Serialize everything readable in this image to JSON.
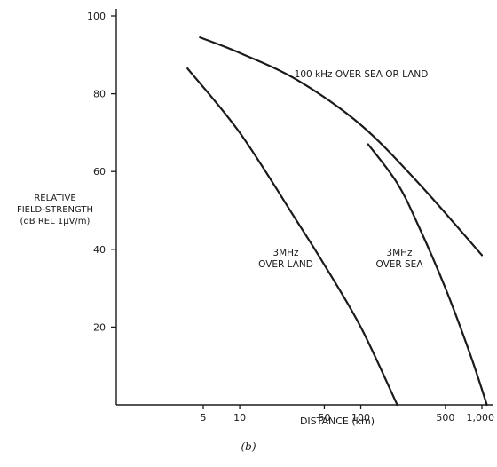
{
  "chart_data": {
    "type": "line",
    "title": "",
    "caption": "(b)",
    "xlabel": "DISTANCE (km)",
    "ylabel_lines": [
      "RELATIVE",
      "FIELD-STRENGTH",
      "(dB REL 1μV/m)"
    ],
    "xscale": "log",
    "xlim": [
      1,
      1100
    ],
    "ylim": [
      0,
      100
    ],
    "grid": false,
    "line_color": "#1a1a1a",
    "x_ticks": [
      {
        "value": 5,
        "label": "5"
      },
      {
        "value": 10,
        "label": "10"
      },
      {
        "value": 50,
        "label": "50"
      },
      {
        "value": 100,
        "label": "100"
      },
      {
        "value": 500,
        "label": "500"
      },
      {
        "value": 1000,
        "label": "1,000"
      }
    ],
    "y_ticks": [
      {
        "value": 20,
        "label": "20"
      },
      {
        "value": 40,
        "label": "40"
      },
      {
        "value": 60,
        "label": "60"
      },
      {
        "value": 80,
        "label": "80"
      },
      {
        "value": 100,
        "label": "100"
      }
    ],
    "series": [
      {
        "name": "",
        "label_lines": [
          "100 kHz OVER SEA OR LAND"
        ],
        "points": [
          [
            4.7,
            94.5
          ],
          [
            10,
            90.5
          ],
          [
            30,
            83.5
          ],
          [
            100,
            72
          ],
          [
            300,
            57
          ],
          [
            1000,
            38.5
          ]
        ]
      },
      {
        "name": "",
        "label_lines": [
          "3MHz",
          "OVER LAND"
        ],
        "points": [
          [
            3.7,
            86.5
          ],
          [
            10,
            70
          ],
          [
            30,
            47
          ],
          [
            50,
            36
          ],
          [
            100,
            20
          ],
          [
            200,
            0
          ]
        ]
      },
      {
        "name": "",
        "label_lines": [
          "3MHz",
          "OVER SEA"
        ],
        "points": [
          [
            115,
            67
          ],
          [
            200,
            57
          ],
          [
            300,
            46
          ],
          [
            500,
            30
          ],
          [
            800,
            13
          ],
          [
            1100,
            0
          ]
        ]
      }
    ]
  }
}
